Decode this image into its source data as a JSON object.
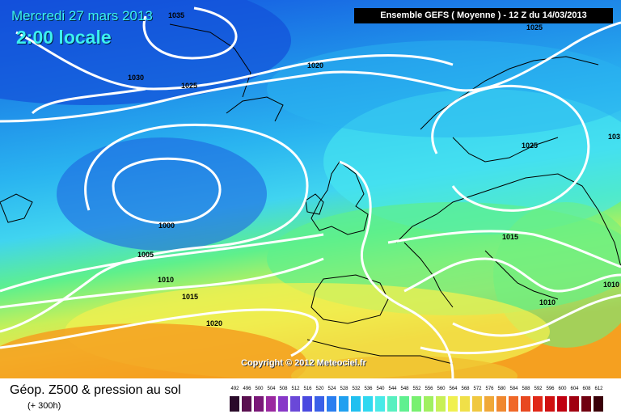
{
  "header": {
    "date_line": "Mercredi 27 mars 2013",
    "time_line": "2:00 locale",
    "run_info": "Ensemble GEFS ( Moyenne )  -  12 Z du 14/03/2013"
  },
  "isobars": [
    {
      "label": "1035"
    },
    {
      "label": "1030"
    },
    {
      "label": "1025"
    },
    {
      "label": "1020"
    },
    {
      "label": "1025"
    },
    {
      "label": "1025"
    },
    {
      "label": "1000"
    },
    {
      "label": "1005"
    },
    {
      "label": "1010"
    },
    {
      "label": "1015"
    },
    {
      "label": "1020"
    },
    {
      "label": "1015"
    },
    {
      "label": "1010"
    },
    {
      "label": "1010"
    },
    {
      "label": "103"
    }
  ],
  "copyright": "Copyright © 2012 Meteociel.fr",
  "footer": {
    "title": "Géop. Z500 & pression au sol",
    "subtitle": "(+ 300h)"
  },
  "colors": {
    "sea_deep_blue": "#1450e0",
    "light_blue": "#2ab4f0",
    "cyan": "#46e6f0",
    "green": "#5ef08c",
    "yellow": "#f0f050",
    "orange": "#f5a020",
    "isobar": "#ffffff",
    "coast": "#000000"
  },
  "scale": {
    "labels": [
      "492",
      "496",
      "500",
      "504",
      "508",
      "512",
      "516",
      "520",
      "524",
      "528",
      "532",
      "536",
      "540",
      "544",
      "548",
      "552",
      "556",
      "560",
      "564",
      "568",
      "572",
      "576",
      "580",
      "584",
      "588",
      "592",
      "596",
      "600",
      "604",
      "608",
      "612"
    ],
    "colors": [
      "#2a0a2a",
      "#5a1050",
      "#7a1878",
      "#9a28a0",
      "#8838c8",
      "#6a48d8",
      "#4a4ae0",
      "#3a60e8",
      "#2a7ef0",
      "#20a0f0",
      "#20c0f0",
      "#30d8f0",
      "#48eae8",
      "#58f0c0",
      "#60f090",
      "#78f070",
      "#a0f060",
      "#c8f058",
      "#f0f050",
      "#f0e048",
      "#f0c840",
      "#f0a838",
      "#f08830",
      "#f06828",
      "#e84820",
      "#e02818",
      "#d01010",
      "#c00010",
      "#a00010",
      "#700010",
      "#3a0008"
    ]
  }
}
